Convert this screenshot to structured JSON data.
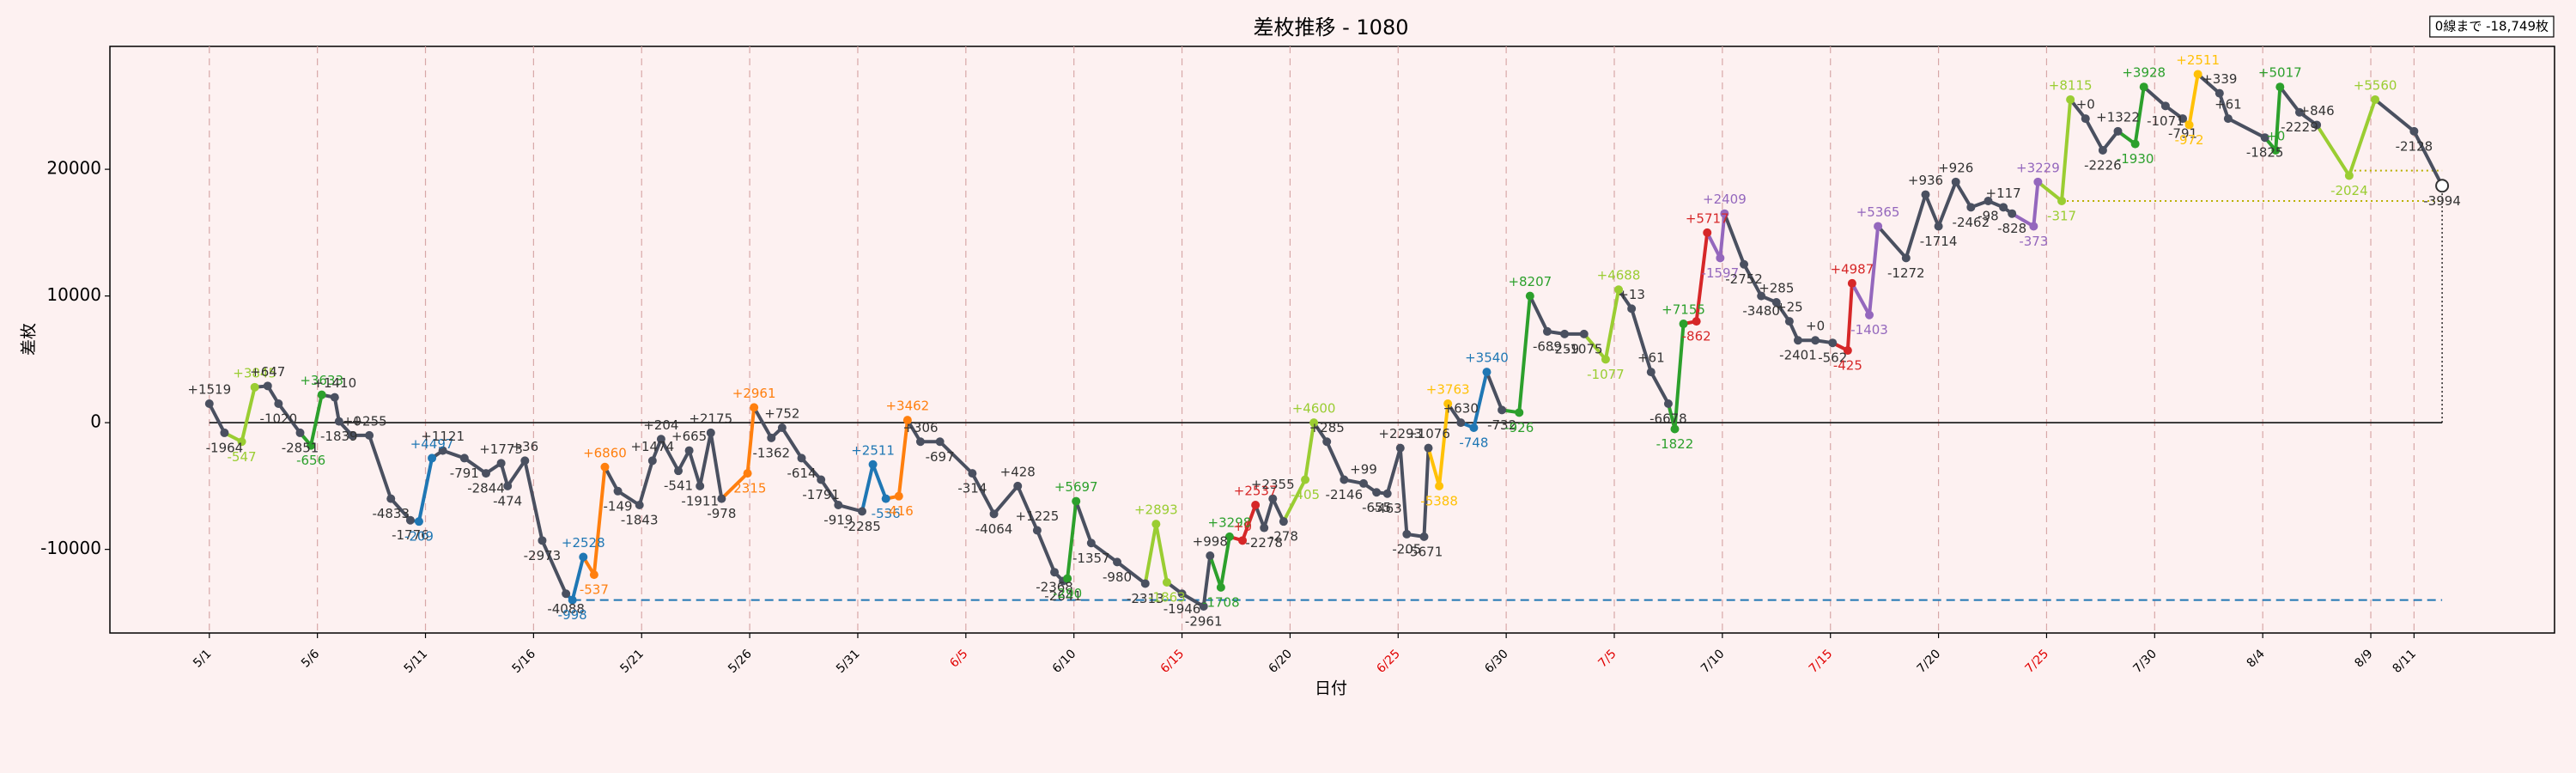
{
  "chart_data": {
    "type": "line",
    "title": "差枚推移 - 1080",
    "x_label": "日付",
    "y_label": "差枚",
    "annotation": "0線まで -18,749枚",
    "xlim": [
      -4.6,
      108.5
    ],
    "ylim": [
      -16600,
      29700
    ],
    "grid": "x",
    "zero_line": true,
    "xticks": [
      {
        "value": 0,
        "label": "5/1",
        "color": "#000000"
      },
      {
        "value": 5,
        "label": "5/6",
        "color": "#000000"
      },
      {
        "value": 10,
        "label": "5/11",
        "color": "#000000"
      },
      {
        "value": 15,
        "label": "5/16",
        "color": "#000000"
      },
      {
        "value": 20,
        "label": "5/21",
        "color": "#000000"
      },
      {
        "value": 25,
        "label": "5/26",
        "color": "#000000"
      },
      {
        "value": 30,
        "label": "5/31",
        "color": "#000000"
      },
      {
        "value": 35,
        "label": "6/5",
        "color": "#e00000"
      },
      {
        "value": 40,
        "label": "6/10",
        "color": "#000000"
      },
      {
        "value": 45,
        "label": "6/15",
        "color": "#e00000"
      },
      {
        "value": 50,
        "label": "6/20",
        "color": "#000000"
      },
      {
        "value": 55,
        "label": "6/25",
        "color": "#e00000"
      },
      {
        "value": 60,
        "label": "6/30",
        "color": "#000000"
      },
      {
        "value": 65,
        "label": "7/5",
        "color": "#e00000"
      },
      {
        "value": 70,
        "label": "7/10",
        "color": "#000000"
      },
      {
        "value": 75,
        "label": "7/15",
        "color": "#e00000"
      },
      {
        "value": 80,
        "label": "7/20",
        "color": "#000000"
      },
      {
        "value": 85,
        "label": "7/25",
        "color": "#e00000"
      },
      {
        "value": 90,
        "label": "7/30",
        "color": "#000000"
      },
      {
        "value": 95,
        "label": "8/4",
        "color": "#000000"
      },
      {
        "value": 100,
        "label": "8/9",
        "color": "#000000"
      },
      {
        "value": 102,
        "label": "8/11",
        "color": "#000000"
      }
    ],
    "yticks": [
      -10000,
      0,
      10000,
      20000
    ],
    "reference_lines": [
      {
        "value": -14000,
        "color": "#1f77b4",
        "style": "dashed"
      },
      {
        "value": 17500,
        "color": "#b8b000",
        "style": "dotted"
      },
      {
        "value": 19900,
        "color": "#b8b000",
        "style": "dotted"
      }
    ],
    "x": [
      0,
      0.7,
      1.5,
      2.1,
      2.7,
      3.2,
      4.2,
      4.7,
      5.2,
      5.8,
      6.0,
      6.6,
      7.4,
      8.4,
      9.3,
      9.7,
      10.3,
      10.8,
      11.8,
      12.8,
      13.5,
      13.8,
      14.6,
      15.4,
      16.5,
      16.8,
      17.3,
      17.8,
      18.3,
      18.9,
      19.9,
      20.5,
      20.9,
      21.7,
      22.2,
      22.7,
      23.2,
      23.7,
      24.9,
      25.2,
      26.0,
      26.5,
      27.4,
      28.3,
      29.1,
      30.2,
      30.7,
      31.3,
      31.9,
      32.3,
      32.9,
      33.8,
      35.3,
      36.3,
      37.4,
      38.3,
      39.1,
      39.5,
      39.7,
      40.1,
      40.8,
      42.0,
      43.3,
      43.8,
      44.3,
      45.0,
      46.0,
      46.3,
      46.8,
      47.2,
      47.8,
      48.4,
      48.8,
      49.2,
      49.7,
      50.7,
      51.1,
      51.7,
      52.5,
      53.4,
      54.0,
      54.5,
      55.1,
      55.4,
      56.2,
      56.4,
      56.9,
      57.3,
      57.9,
      58.5,
      59.1,
      59.8,
      60.6,
      61.1,
      61.9,
      62.7,
      63.6,
      64.6,
      65.2,
      65.8,
      66.7,
      67.5,
      67.8,
      68.2,
      68.8,
      69.3,
      69.9,
      70.1,
      71.0,
      71.8,
      72.5,
      73.1,
      73.5,
      74.3,
      75.1,
      75.8,
      76.0,
      76.8,
      77.2,
      78.5,
      79.4,
      80.0,
      80.8,
      81.5,
      82.3,
      83.0,
      83.4,
      84.4,
      84.6,
      85.7,
      86.1,
      86.8,
      87.6,
      88.3,
      89.1,
      89.5,
      90.5,
      91.3,
      91.6,
      92.0,
      93.0,
      93.4,
      95.1,
      95.6,
      95.8,
      96.7,
      97.5,
      99.0,
      100.2,
      102.0,
      103.3
    ],
    "values": [
      1500,
      -800,
      -1500,
      2800,
      2900,
      1500,
      -800,
      -1800,
      2200,
      2000,
      100,
      -1000,
      -1000,
      -6000,
      -7700,
      -7800,
      -2800,
      -2200,
      -2800,
      -4000,
      -3200,
      -5000,
      -3000,
      -9300,
      -13500,
      -14000,
      -10600,
      -12000,
      -3500,
      -5400,
      -6500,
      -3000,
      -1300,
      -3800,
      -2200,
      -5000,
      -800,
      -6000,
      -4000,
      1200,
      -1200,
      -400,
      -2800,
      -4500,
      -6500,
      -7000,
      -3300,
      -6000,
      -5800,
      200,
      -1500,
      -1500,
      -4000,
      -7200,
      -5000,
      -8500,
      -11800,
      -12500,
      -12300,
      -6200,
      -9500,
      -11000,
      -12700,
      -8000,
      -12600,
      -13500,
      -14500,
      -10500,
      -13000,
      -9000,
      -9300,
      -6500,
      -8300,
      -6000,
      -7800,
      -4500,
      0,
      -1500,
      -4500,
      -4800,
      -5500,
      -5600,
      -2000,
      -8800,
      -9000,
      -2000,
      -5000,
      1500,
      0,
      -400,
      4000,
      1000,
      800,
      10000,
      7200,
      7000,
      7000,
      5000,
      10500,
      9000,
      4000,
      1500,
      -500,
      7800,
      8000,
      15000,
      13000,
      16500,
      12500,
      10000,
      9500,
      8000,
      6500,
      6500,
      6300,
      5700,
      11000,
      8500,
      15500,
      13000,
      18000,
      15500,
      19000,
      17000,
      17500,
      17000,
      16500,
      15500,
      19000,
      17500,
      25500,
      24000,
      21500,
      23000,
      22000,
      26500,
      25000,
      24000,
      23500,
      27500,
      26000,
      24000,
      22500,
      21500,
      26500,
      24500,
      23500,
      19500,
      25500,
      23000,
      18700
    ],
    "change_labels": [
      "+1519",
      "-1964",
      "-547",
      "+3845",
      "+647",
      "-1020",
      "-2851",
      "-656",
      "+3633",
      "+1410",
      "-1839",
      "+0",
      "+255",
      "-4833",
      "-1776",
      "-209",
      "+4497",
      "+1121",
      "-791",
      "-2844",
      "+1773",
      "-474",
      "+36",
      "-2973",
      "-4088",
      "-998",
      "+2528",
      "-537",
      "+6860",
      "-149",
      "-1843",
      "+1474",
      "+204",
      "-541",
      "+665",
      "-1911",
      "+2175",
      "-978",
      "-2315",
      "+2961",
      "-1362",
      "+752",
      "-614",
      "-1791",
      "-919",
      "-2285",
      "+2511",
      "-536",
      "-416",
      "+3462",
      "+306",
      "-697",
      "-314",
      "-4064",
      "+428",
      "+1225",
      "-2368",
      "-2641",
      "-290",
      "+5697",
      "-1357",
      "-980",
      "-2313",
      "+2893",
      "-1863",
      "-1946",
      "-2961",
      "+998",
      "-1708",
      "+3298",
      "+0",
      "+2537",
      "-2278",
      "+2355",
      "-278",
      "-405",
      "+4600",
      "+285",
      "-2146",
      "+99",
      "-655",
      "-463",
      "+2293",
      "-205",
      "-5671",
      "+1076",
      "-5388",
      "+3763",
      "+630",
      "-748",
      "+3540",
      "-732",
      "-926",
      "+8207",
      "-689",
      "-259",
      "-1075",
      "-1077",
      "+4688",
      "+13",
      "+61",
      "-6678",
      "-1822",
      "+7155",
      "-862",
      "+5717",
      "-1597",
      "+2409",
      "-2752",
      "-3480",
      "+285",
      "+25",
      "-2401",
      "+0",
      "-562",
      "-425",
      "+4987",
      "-1403",
      "+5365",
      "-1272",
      "+936",
      "-1714",
      "+926",
      "-2462",
      "-98",
      "+117",
      "-828",
      "-373",
      "+3229",
      "-317",
      "+8115",
      "+0",
      "-2226",
      "+1322",
      "-1930",
      "+3928",
      "-1071",
      "-791",
      "-972",
      "+2511",
      "+339",
      "+61",
      "-1825",
      "+0",
      "+5017",
      "-2229",
      "+846",
      "-2024",
      "+5560",
      "-2128",
      "-3994"
    ],
    "colors": [
      "#4a5060",
      "#4a5060",
      "#9acd32",
      "#9acd32",
      "#4a5060",
      "#4a5060",
      "#4a5060",
      "#2ca02c",
      "#2ca02c",
      "#4a5060",
      "#4a5060",
      "#4a5060",
      "#4a5060",
      "#4a5060",
      "#4a5060",
      "#1f77b4",
      "#1f77b4",
      "#4a5060",
      "#4a5060",
      "#4a5060",
      "#4a5060",
      "#4a5060",
      "#4a5060",
      "#4a5060",
      "#4a5060",
      "#1f77b4",
      "#1f77b4",
      "#ff7f0e",
      "#ff7f0e",
      "#4a5060",
      "#4a5060",
      "#4a5060",
      "#4a5060",
      "#4a5060",
      "#4a5060",
      "#4a5060",
      "#4a5060",
      "#4a5060",
      "#ff7f0e",
      "#ff7f0e",
      "#4a5060",
      "#4a5060",
      "#4a5060",
      "#4a5060",
      "#4a5060",
      "#4a5060",
      "#1f77b4",
      "#1f77b4",
      "#ff7f0e",
      "#ff7f0e",
      "#4a5060",
      "#4a5060",
      "#4a5060",
      "#4a5060",
      "#4a5060",
      "#4a5060",
      "#4a5060",
      "#4a5060",
      "#2ca02c",
      "#2ca02c",
      "#4a5060",
      "#4a5060",
      "#4a5060",
      "#9acd32",
      "#9acd32",
      "#4a5060",
      "#4a5060",
      "#4a5060",
      "#2ca02c",
      "#2ca02c",
      "#d62728",
      "#d62728",
      "#4a5060",
      "#4a5060",
      "#4a5060",
      "#9acd32",
      "#9acd32",
      "#4a5060",
      "#4a5060",
      "#4a5060",
      "#4a5060",
      "#4a5060",
      "#4a5060",
      "#4a5060",
      "#4a5060",
      "#4a5060",
      "#ffc107",
      "#ffc107",
      "#4a5060",
      "#1f77b4",
      "#1f77b4",
      "#4a5060",
      "#2ca02c",
      "#2ca02c",
      "#4a5060",
      "#4a5060",
      "#4a5060",
      "#9acd32",
      "#9acd32",
      "#4a5060",
      "#4a5060",
      "#4a5060",
      "#2ca02c",
      "#2ca02c",
      "#d62728",
      "#d62728",
      "#9467bd",
      "#9467bd",
      "#4a5060",
      "#4a5060",
      "#4a5060",
      "#4a5060",
      "#4a5060",
      "#4a5060",
      "#4a5060",
      "#d62728",
      "#d62728",
      "#9467bd",
      "#9467bd",
      "#4a5060",
      "#4a5060",
      "#4a5060",
      "#4a5060",
      "#4a5060",
      "#4a5060",
      "#4a5060",
      "#4a5060",
      "#9467bd",
      "#9467bd",
      "#9acd32",
      "#9acd32",
      "#4a5060",
      "#4a5060",
      "#4a5060",
      "#2ca02c",
      "#2ca02c",
      "#4a5060",
      "#4a5060",
      "#ffc107",
      "#ffc107",
      "#4a5060",
      "#4a5060",
      "#4a5060",
      "#2ca02c",
      "#2ca02c",
      "#4a5060",
      "#4a5060",
      "#9acd32",
      "#9acd32",
      "#4a5060",
      "#4a5060"
    ]
  }
}
